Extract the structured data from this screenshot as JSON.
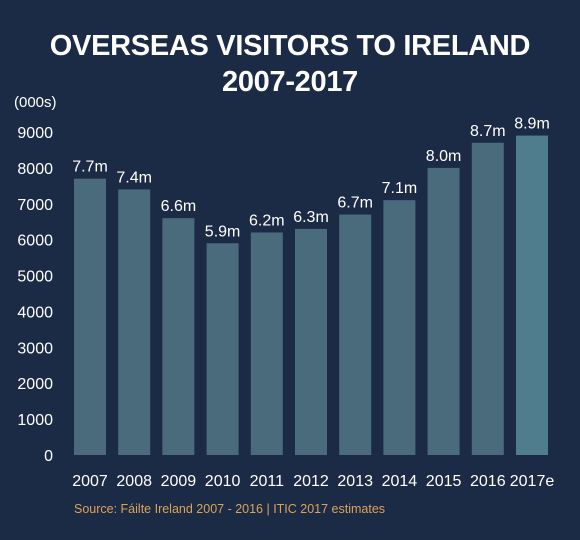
{
  "colors": {
    "background": "#1c2b45",
    "bar": "#4a6b7c",
    "bar_highlight": "#4f7d8e",
    "text": "#ffffff",
    "source_text": "#d9a35a"
  },
  "chart_data": {
    "type": "bar",
    "title_lines": [
      "OVERSEAS VISITORS TO IRELAND",
      "2007-2017"
    ],
    "unit_label": "(000s)",
    "categories": [
      "2007",
      "2008",
      "2009",
      "2010",
      "2011",
      "2012",
      "2013",
      "2014",
      "2015",
      "2016",
      "2017e"
    ],
    "values": [
      7700,
      7400,
      6600,
      5900,
      6200,
      6300,
      6700,
      7100,
      8000,
      8700,
      8900
    ],
    "data_labels": [
      "7.7m",
      "7.4m",
      "6.6m",
      "5.9m",
      "6.2m",
      "6.3m",
      "6.7m",
      "7.1m",
      "8.0m",
      "8.7m",
      "8.9m"
    ],
    "highlight_category": "2017e",
    "yticks": [
      0,
      1000,
      2000,
      3000,
      4000,
      5000,
      6000,
      7000,
      8000,
      9000
    ],
    "ylim": [
      0,
      9000
    ],
    "grid": false,
    "legend": "none"
  },
  "source": "Source: Fáilte Ireland 2007 - 2016  |  ITIC 2017 estimates"
}
